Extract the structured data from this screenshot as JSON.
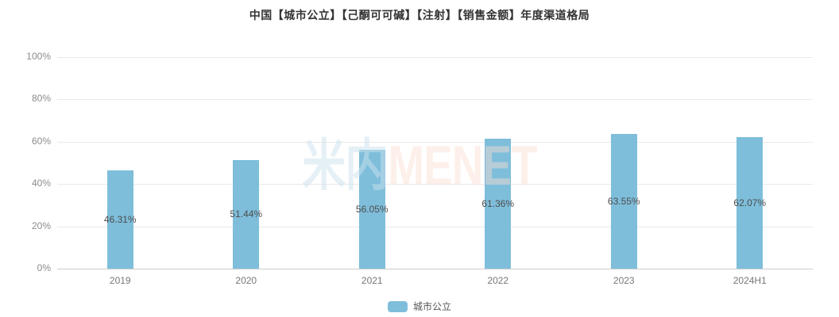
{
  "title": "中国【城市公立】【己酮可可碱】【注射】【销售金额】年度渠道格局",
  "watermark": {
    "part1": "米内",
    "part2": "MENET"
  },
  "legend": {
    "items": [
      {
        "label": "城市公立"
      }
    ]
  },
  "colors": {
    "bar": "#7EBEDB",
    "grid": "#E9E9E9",
    "axis_line": "#CCCCCC",
    "title_text": "#333333",
    "y_tick_text": "#8C8C8C",
    "x_tick_text": "#777777",
    "data_label_text": "#4D4D4D",
    "legend_text": "#555555",
    "watermark_cn": "rgba(203,226,238,0.5)",
    "watermark_en": "rgba(250,221,209,0.45)"
  },
  "chart_data": {
    "type": "bar",
    "title": "中国【城市公立】【己酮可可碱】【注射】【销售金额】年度渠道格局",
    "categories": [
      "2019",
      "2020",
      "2021",
      "2022",
      "2023",
      "2024H1"
    ],
    "series": [
      {
        "name": "城市公立",
        "values": [
          46.31,
          51.44,
          56.05,
          61.36,
          63.55,
          62.07
        ]
      }
    ],
    "value_labels": [
      "46.31%",
      "51.44%",
      "56.05%",
      "61.36%",
      "63.55%",
      "62.07%"
    ],
    "xlabel": "",
    "ylabel": "",
    "ylim": [
      0,
      100
    ],
    "yticks": [
      "0%",
      "20%",
      "40%",
      "60%",
      "80%",
      "100%"
    ],
    "grid": true,
    "legend_position": "bottom",
    "data_label_position": "inside-middle"
  }
}
